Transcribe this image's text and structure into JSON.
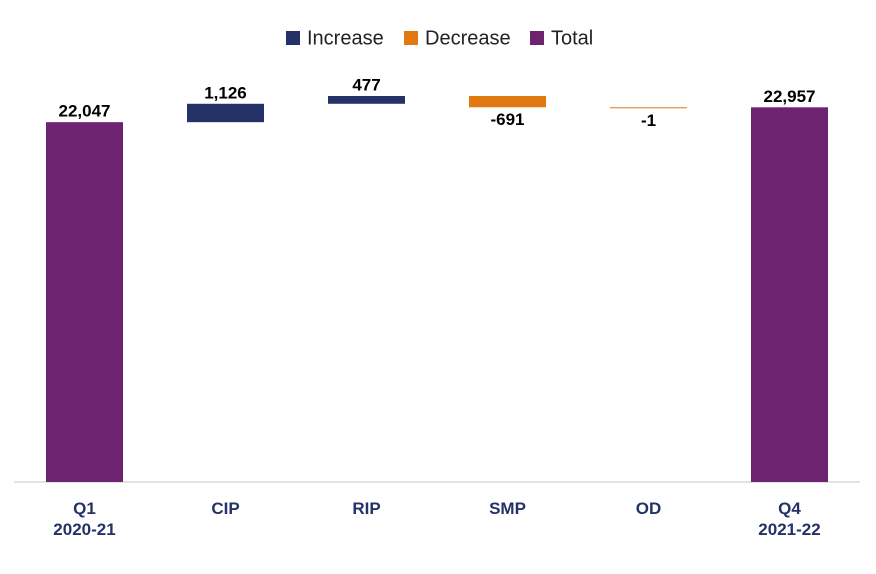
{
  "chart_data": {
    "type": "waterfall",
    "categories": [
      "Q1\n2020-21",
      "CIP",
      "RIP",
      "SMP",
      "OD",
      "Q4\n2021-22"
    ],
    "values": [
      22047,
      1126,
      477,
      -691,
      -1,
      22957
    ],
    "value_labels": [
      "22,047",
      "1,126",
      "477",
      "-691",
      "-1",
      "22,957"
    ],
    "legend": [
      {
        "name": "Increase",
        "color": "#253268"
      },
      {
        "name": "Decrease",
        "color": "#e07a10"
      },
      {
        "name": "Total",
        "color": "#6d2370"
      }
    ]
  }
}
